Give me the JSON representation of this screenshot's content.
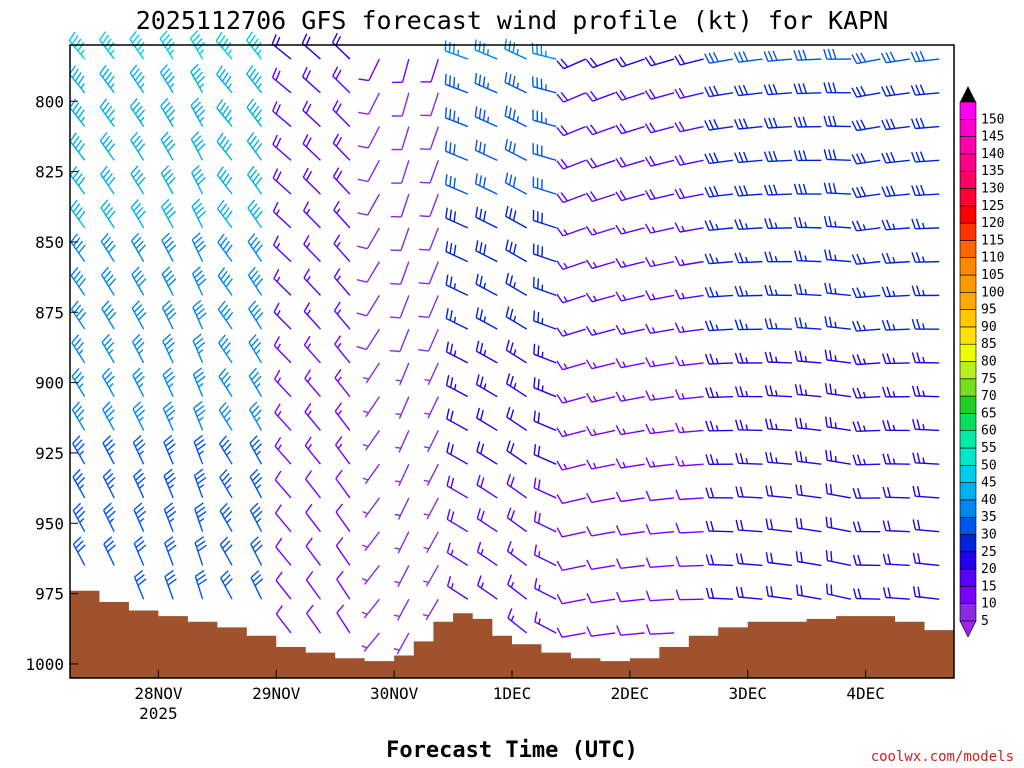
{
  "chart_data": {
    "type": "wind_barb_profile",
    "title": "2025112706 GFS forecast wind profile (kt) for KAPN",
    "xlabel": "Forecast Time (UTC)",
    "credit": "coolwx.com/models",
    "x_ticks": [
      {
        "label": "28NOV",
        "sublabel": "2025",
        "hour": 18
      },
      {
        "label": "29NOV",
        "hour": 42
      },
      {
        "label": "30NOV",
        "hour": 66
      },
      {
        "label": "1DEC",
        "hour": 90
      },
      {
        "label": "2DEC",
        "hour": 114
      },
      {
        "label": "3DEC",
        "hour": 138
      },
      {
        "label": "4DEC",
        "hour": 162
      }
    ],
    "x_range_hours": [
      0,
      180
    ],
    "y_ticks": [
      "800",
      "825",
      "850",
      "875",
      "900",
      "925",
      "950",
      "975",
      "1000"
    ],
    "y_range_hPa": [
      780,
      1005
    ],
    "colorbar_levels": [
      "5",
      "10",
      "15",
      "20",
      "25",
      "30",
      "35",
      "40",
      "45",
      "50",
      "55",
      "60",
      "65",
      "70",
      "75",
      "80",
      "85",
      "90",
      "95",
      "100",
      "105",
      "110",
      "115",
      "120",
      "125",
      "130",
      "135",
      "140",
      "145",
      "150"
    ],
    "colorbar_colors": [
      "#8a2be2",
      "#7a00ff",
      "#5a00ff",
      "#2200ee",
      "#0022dd",
      "#0055ee",
      "#0088f0",
      "#00b0f0",
      "#00ccee",
      "#00e8c8",
      "#00ecaa",
      "#00e060",
      "#22cc22",
      "#77dd22",
      "#bbee22",
      "#eeff00",
      "#ffe000",
      "#ffc800",
      "#ffaa00",
      "#ff9900",
      "#ff8800",
      "#ff6600",
      "#ff3300",
      "#ff0000",
      "#ff0033",
      "#ff0066",
      "#ff0088",
      "#ff00aa",
      "#ff00cc",
      "#ff00ee"
    ],
    "colorbar_over": "#000000",
    "colorbar_under": "#a020f0",
    "surface_color": "#a0522d",
    "surface_pressure": [
      {
        "hour": 0,
        "hPa": 974
      },
      {
        "hour": 6,
        "hPa": 978
      },
      {
        "hour": 12,
        "hPa": 981
      },
      {
        "hour": 18,
        "hPa": 983
      },
      {
        "hour": 24,
        "hPa": 985
      },
      {
        "hour": 30,
        "hPa": 987
      },
      {
        "hour": 36,
        "hPa": 990
      },
      {
        "hour": 42,
        "hPa": 994
      },
      {
        "hour": 48,
        "hPa": 996
      },
      {
        "hour": 54,
        "hPa": 998
      },
      {
        "hour": 60,
        "hPa": 999
      },
      {
        "hour": 66,
        "hPa": 997
      },
      {
        "hour": 70,
        "hPa": 992
      },
      {
        "hour": 74,
        "hPa": 985
      },
      {
        "hour": 78,
        "hPa": 982
      },
      {
        "hour": 82,
        "hPa": 984
      },
      {
        "hour": 86,
        "hPa": 990
      },
      {
        "hour": 90,
        "hPa": 993
      },
      {
        "hour": 96,
        "hPa": 996
      },
      {
        "hour": 102,
        "hPa": 998
      },
      {
        "hour": 108,
        "hPa": 999
      },
      {
        "hour": 114,
        "hPa": 998
      },
      {
        "hour": 120,
        "hPa": 994
      },
      {
        "hour": 126,
        "hPa": 990
      },
      {
        "hour": 132,
        "hPa": 987
      },
      {
        "hour": 138,
        "hPa": 985
      },
      {
        "hour": 144,
        "hPa": 985
      },
      {
        "hour": 150,
        "hPa": 984
      },
      {
        "hour": 156,
        "hPa": 983
      },
      {
        "hour": 162,
        "hPa": 983
      },
      {
        "hour": 168,
        "hPa": 985
      },
      {
        "hour": 174,
        "hPa": 988
      },
      {
        "hour": 180,
        "hPa": 989
      }
    ],
    "wind_phases": [
      {
        "from_hour": 0,
        "to_hour": 42,
        "direction_deg": 325,
        "speed_kt_low": 30,
        "speed_kt_high": 45
      },
      {
        "from_hour": 42,
        "to_hour": 60,
        "direction_deg": 310,
        "speed_kt_low": 10,
        "speed_kt_high": 20
      },
      {
        "from_hour": 60,
        "to_hour": 78,
        "direction_deg": 200,
        "speed_kt_low": 5,
        "speed_kt_high": 10
      },
      {
        "from_hour": 78,
        "to_hour": 102,
        "direction_deg": 290,
        "speed_kt_low": 15,
        "speed_kt_high": 35
      },
      {
        "from_hour": 102,
        "to_hour": 132,
        "direction_deg": 250,
        "speed_kt_low": 10,
        "speed_kt_high": 20
      },
      {
        "from_hour": 132,
        "to_hour": 180,
        "direction_deg": 265,
        "speed_kt_low": 20,
        "speed_kt_high": 30
      }
    ]
  }
}
